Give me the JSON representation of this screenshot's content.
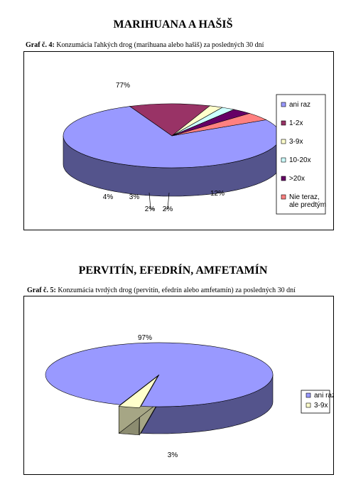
{
  "sections": [
    {
      "heading": "MARIHUANA A HAŠIŠ",
      "caption_label": "Graf č. 4:",
      "caption_text": " Konzumácia ľahkých drog (marihuana alebo hašiš) za posledných 30 dní"
    },
    {
      "heading": "PERVITÍN, EFEDRÍN, AMFETAMÍN",
      "caption_label": "Graf č. 5:",
      "caption_text": " Konzumácia tvrdých drog (pervitín, efedrín alebo amfetamín) za posledných 30 dní"
    }
  ],
  "chart_data": [
    {
      "type": "pie",
      "style": "3d-exploded",
      "legend_position": "right",
      "slices": [
        {
          "label": "ani raz",
          "value": 77,
          "value_label": "77%",
          "color": "#9999FF"
        },
        {
          "label": "1-2x",
          "value": 12,
          "value_label": "12%",
          "color": "#993366"
        },
        {
          "label": "3-9x",
          "value": 2,
          "value_label": "2%",
          "color": "#FFFFCC"
        },
        {
          "label": "10-20x",
          "value": 2,
          "value_label": "2%",
          "color": "#CCFFFF"
        },
        {
          "label": ">20x",
          "value": 3,
          "value_label": "3%",
          "color": "#660066"
        },
        {
          "label": "Nie teraz, ale predtým",
          "value": 4,
          "value_label": "4%",
          "color": "#FF8080"
        }
      ]
    },
    {
      "type": "pie",
      "style": "3d-exploded",
      "legend_position": "right",
      "slices": [
        {
          "label": "ani raz",
          "value": 97,
          "value_label": "97%",
          "color": "#9999FF"
        },
        {
          "label": "3-9x",
          "value": 3,
          "value_label": "3%",
          "color": "#FFFFCC"
        }
      ]
    }
  ]
}
